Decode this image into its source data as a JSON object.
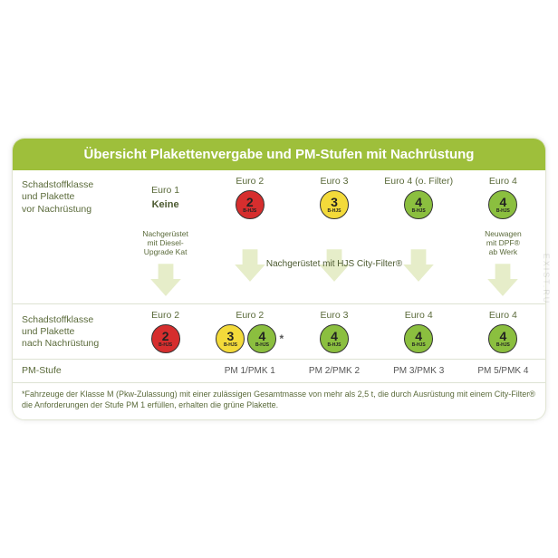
{
  "colors": {
    "header_bg": "#9ebf3b",
    "header_text": "#ffffff",
    "arrow_fill": "#e6edc9",
    "badge_red": "#d62e2e",
    "badge_yellow": "#f3da3a",
    "badge_green": "#8bbf3f",
    "label_text": "#5a6a3a"
  },
  "title": "Übersicht Plakettenvergabe und PM-Stufen mit Nachrüstung",
  "row_labels": {
    "before": "Schadstoffklasse\nund Plakette\nvor Nachrüstung",
    "after": "Schadstoffklasse\nund Plakette\nnach Nachrüstung",
    "pm": "PM-Stufe"
  },
  "columns": [
    {
      "head": "Euro 1",
      "before_badge": null,
      "before_text": "Keine",
      "arrow_label": "Nachgerüstet\nmit Diesel-\nUpgrade Kat",
      "after_head": "Euro 2",
      "after_badges": [
        {
          "num": "2",
          "color": "red"
        }
      ],
      "pm": ""
    },
    {
      "head": "Euro 2",
      "before_badge": {
        "num": "2",
        "color": "red"
      },
      "arrow_group": "city",
      "after_head": "Euro 2",
      "after_badges": [
        {
          "num": "3",
          "color": "yellow"
        },
        {
          "num": "4",
          "color": "green"
        }
      ],
      "after_star": "*",
      "pm": "PM 1/PMK 1"
    },
    {
      "head": "Euro 3",
      "before_badge": {
        "num": "3",
        "color": "yellow"
      },
      "arrow_group": "city",
      "after_head": "Euro 3",
      "after_badges": [
        {
          "num": "4",
          "color": "green"
        }
      ],
      "pm": "PM 2/PMK 2"
    },
    {
      "head": "Euro 4 (o. Filter)",
      "before_badge": {
        "num": "4",
        "color": "green"
      },
      "arrow_group": "city",
      "after_head": "Euro 4",
      "after_badges": [
        {
          "num": "4",
          "color": "green"
        }
      ],
      "pm": "PM 3/PMK 3"
    },
    {
      "head": "Euro 4",
      "before_badge": {
        "num": "4",
        "color": "green"
      },
      "arrow_label": "Neuwagen\nmit DPF®\nab Werk",
      "after_head": "Euro 4",
      "after_badges": [
        {
          "num": "4",
          "color": "green"
        }
      ],
      "pm": "PM 5/PMK 4"
    }
  ],
  "arrow_center_label": "Nachgerüstet mit HJS City-Filter®",
  "badge_sub": "B-HJS",
  "footnote": "*Fahrzeuge der Klasse M (Pkw-Zulassung) mit einer zulässigen Gesamtmasse von mehr als 2,5 t, die durch Ausrüstung mit einem City-Filter® die Anforderungen der Stufe PM 1 erfüllen, erhalten die grüne Plakette.",
  "watermark": "EXIST.RU"
}
